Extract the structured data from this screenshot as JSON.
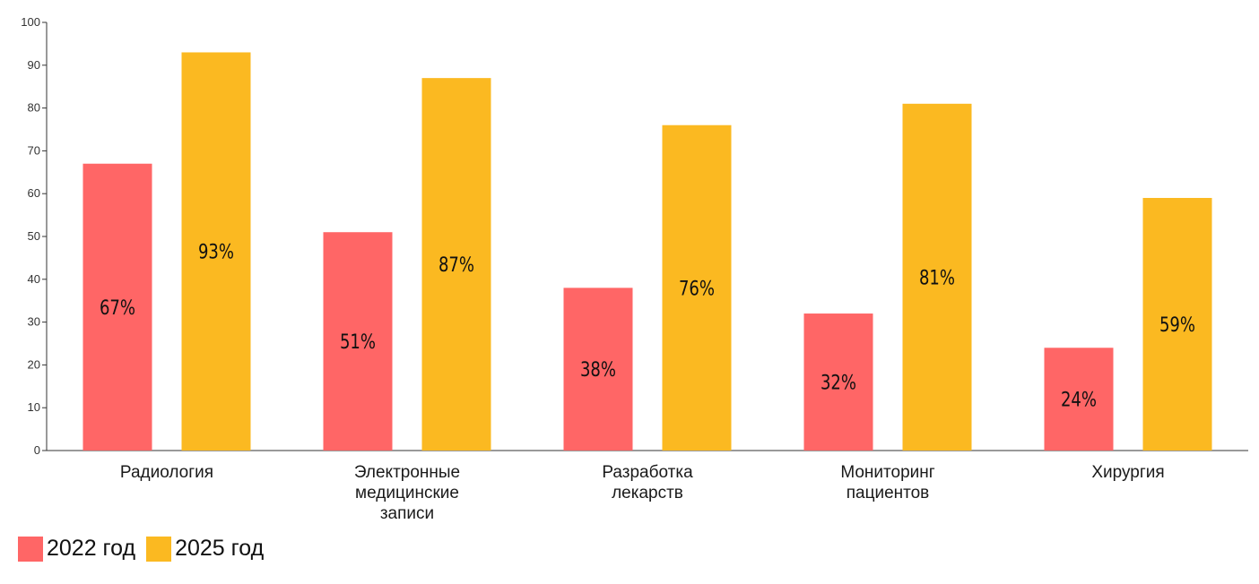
{
  "chart_data": {
    "type": "bar",
    "categories": [
      [
        "Радиология"
      ],
      [
        "Электронные",
        "медицинские",
        "записи"
      ],
      [
        "Разработка",
        "лекарств"
      ],
      [
        "Мониторинг",
        "пациентов"
      ],
      [
        "Хирургия"
      ]
    ],
    "series": [
      {
        "name": "2022 год",
        "color": "#ff6666",
        "values": [
          67,
          51,
          38,
          32,
          24
        ],
        "labels": [
          "67%",
          "51%",
          "38%",
          "32%",
          "24%"
        ]
      },
      {
        "name": "2025 год",
        "color": "#fbb921",
        "values": [
          93,
          87,
          76,
          81,
          59
        ],
        "labels": [
          "93%",
          "87%",
          "76%",
          "81%",
          "59%"
        ]
      }
    ],
    "ylim": [
      0,
      100
    ],
    "yticks": [
      0,
      10,
      20,
      30,
      40,
      50,
      60,
      70,
      80,
      90,
      100
    ],
    "grid": false,
    "legend_position": "bottom-left"
  }
}
